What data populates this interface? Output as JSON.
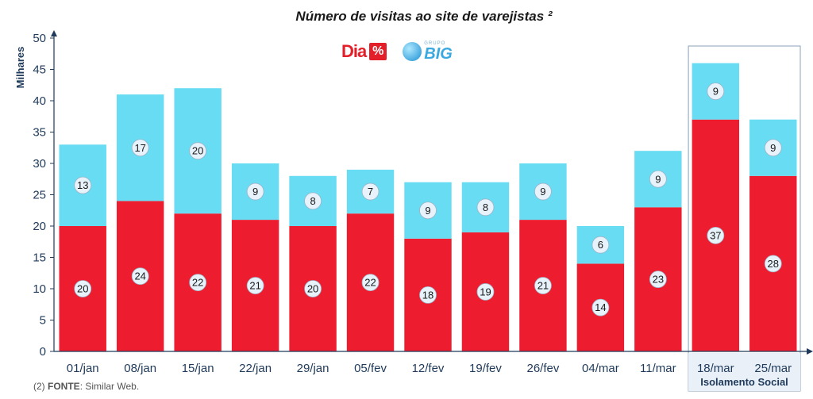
{
  "chart_data": {
    "type": "bar",
    "stacked": true,
    "title": "Número de visitas ao site de varejistas ²",
    "ylabel": "Milhares",
    "ylim": [
      0,
      50
    ],
    "yticks": [
      0,
      5,
      10,
      15,
      20,
      25,
      30,
      35,
      40,
      45,
      50
    ],
    "categories": [
      "01/jan",
      "08/jan",
      "15/jan",
      "22/jan",
      "29/jan",
      "05/fev",
      "12/fev",
      "19/fev",
      "26/fev",
      "04/mar",
      "11/mar",
      "18/mar",
      "25/mar"
    ],
    "series": [
      {
        "color": "#ed1c2e",
        "values": [
          20,
          24,
          22,
          21,
          20,
          22,
          18,
          19,
          21,
          14,
          23,
          37,
          28
        ]
      },
      {
        "color": "#67dcf2",
        "values": [
          13,
          17,
          20,
          9,
          8,
          7,
          9,
          8,
          9,
          6,
          9,
          9,
          9
        ]
      }
    ],
    "annotation": {
      "text": "Isolamento Social",
      "start_category": "18/mar",
      "end_category": "25/mar"
    },
    "grid": false
  },
  "logos": {
    "dia_text": "Dia",
    "dia_symbol": "%",
    "big_small": "GRUPO",
    "big_main": "BIG"
  },
  "source": {
    "prefix": "(2)",
    "label": "FONTE",
    "text": ": Similar Web."
  },
  "colors": {
    "axis": "#1f3a5a",
    "label_bg": "#e8f2fa",
    "annotation_bg": "#e9f0f8"
  }
}
